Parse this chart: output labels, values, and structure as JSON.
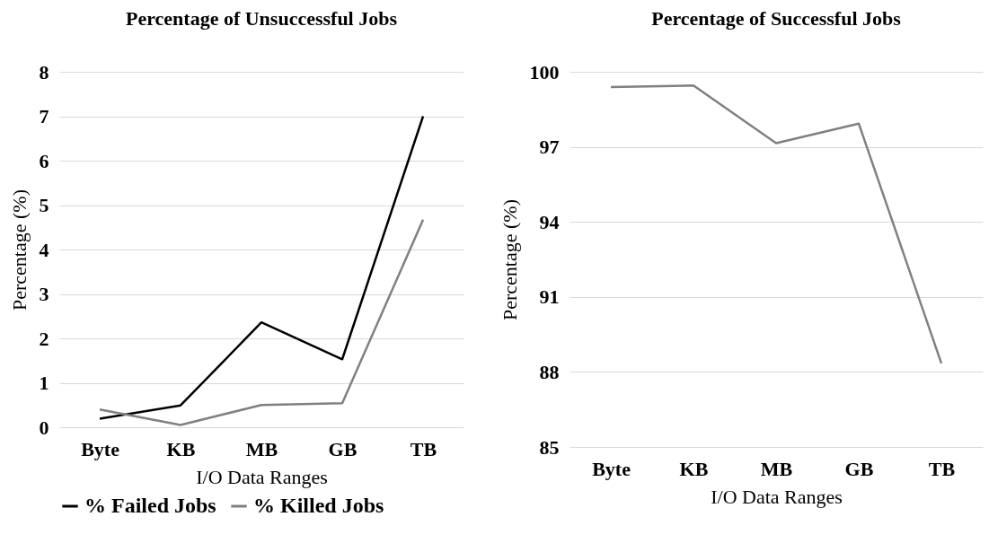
{
  "chart_data": [
    {
      "type": "line",
      "title": "Percentage of Unsuccessful Jobs",
      "xlabel": "I/O Data Ranges",
      "ylabel": "Percentage (%)",
      "categories": [
        "Byte",
        "KB",
        "MB",
        "GB",
        "TB"
      ],
      "series": [
        {
          "name": "% Failed Jobs",
          "color": "#000000",
          "values": [
            0.19,
            0.49,
            2.36,
            1.53,
            7.0
          ]
        },
        {
          "name": "% Killed Jobs",
          "color": "#808080",
          "values": [
            0.4,
            0.05,
            0.5,
            0.54,
            4.67
          ]
        }
      ],
      "ylim": [
        0,
        8
      ],
      "yticks": [
        0,
        1,
        2,
        3,
        4,
        5,
        6,
        7,
        8
      ],
      "grid": "y",
      "legend": "bottom left"
    },
    {
      "type": "line",
      "title": "Percentage of Successful Jobs",
      "xlabel": "I/O Data Ranges",
      "ylabel": "Percentage (%)",
      "categories": [
        "Byte",
        "KB",
        "MB",
        "GB",
        "TB"
      ],
      "series": [
        {
          "color": "#808080",
          "values": [
            99.39,
            99.45,
            97.15,
            97.93,
            88.34
          ]
        }
      ],
      "ylim": [
        85,
        100
      ],
      "yticks": [
        85,
        88,
        91,
        94,
        97,
        100
      ],
      "grid": "y"
    }
  ]
}
